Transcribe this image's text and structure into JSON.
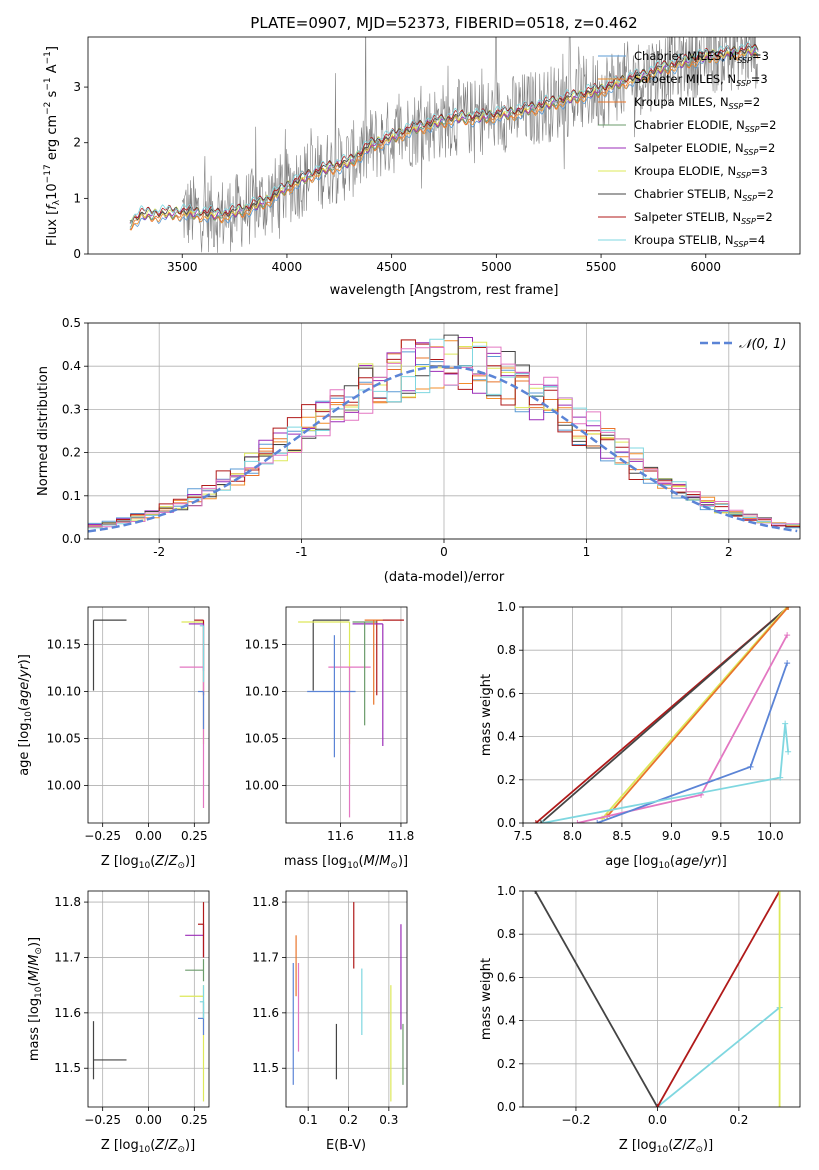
{
  "colors": {
    "chabrier_miles": "#5b9bd5",
    "salpeter_miles": "#f28e2b",
    "kroupa_miles": "#e8742a",
    "chabrier_elodie": "#6b9b6b",
    "salpeter_elodie": "#9b2db8",
    "kroupa_elodie": "#dde85a",
    "chabrier_stelib": "#444444",
    "salpeter_stelib": "#b01a1a",
    "kroupa_stelib": "#7fd7e0",
    "pink": "#e377c2",
    "blue": "#5b84d6",
    "spectrum": "#7f7f7f",
    "normal_curve": "#5b84d6"
  },
  "chart_data": [
    {
      "id": "spectrum",
      "type": "line",
      "title": "PLATE=0907, MJD=52373, FIBERID=0518, z=0.462",
      "xlabel": "wavelength [Angstrom, rest frame]",
      "ylabel": "Flux [f_λ10^-17 erg cm^-2 s^-1 A^-1]",
      "xlim": [
        3050,
        6450
      ],
      "ylim": [
        0,
        3.9
      ],
      "xticks": [
        3500,
        4000,
        4500,
        5000,
        5500,
        6000
      ],
      "yticks": [
        0,
        1,
        2,
        3
      ],
      "grid": false,
      "legend_position": "top-right",
      "legend": [
        {
          "name": "Chabrier MILES, N_SSP=3",
          "color_key": "chabrier_miles"
        },
        {
          "name": "Salpeter MILES, N_SSP=3",
          "color_key": "salpeter_miles"
        },
        {
          "name": "Kroupa MILES, N_SSP=2",
          "color_key": "kroupa_miles"
        },
        {
          "name": "Chabrier ELODIE, N_SSP=2",
          "color_key": "chabrier_elodie"
        },
        {
          "name": "Salpeter ELODIE, N_SSP=2",
          "color_key": "salpeter_elodie"
        },
        {
          "name": "Kroupa ELODIE, N_SSP=3",
          "color_key": "kroupa_elodie"
        },
        {
          "name": "Chabrier STELIB, N_SSP=2",
          "color_key": "chabrier_stelib"
        },
        {
          "name": "Salpeter STELIB, N_SSP=2",
          "color_key": "salpeter_stelib"
        },
        {
          "name": "Kroupa STELIB, N_SSP=4",
          "color_key": "kroupa_stelib"
        }
      ],
      "continuum": {
        "x": [
          3250,
          3300,
          3400,
          3500,
          3600,
          3700,
          3800,
          3900,
          4000,
          4100,
          4200,
          4300,
          4400,
          4500,
          4600,
          4700,
          4800,
          4900,
          5000,
          5100,
          5200,
          5300,
          5400,
          5500,
          5600,
          5700,
          5800,
          5900,
          6000,
          6100,
          6200
        ],
        "y": [
          0.55,
          0.7,
          0.72,
          0.75,
          0.72,
          0.7,
          0.8,
          0.95,
          1.2,
          1.4,
          1.55,
          1.65,
          1.95,
          2.1,
          2.25,
          2.35,
          2.45,
          2.45,
          2.5,
          2.55,
          2.65,
          2.75,
          2.85,
          2.95,
          3.1,
          3.2,
          3.35,
          3.45,
          3.55,
          3.6,
          3.65
        ]
      },
      "noisy_data_range": [
        3500,
        6250
      ]
    },
    {
      "id": "residuals",
      "type": "bar",
      "xlabel": "(data-model)/error",
      "ylabel": "Normed distribution",
      "xlim": [
        -2.5,
        2.5
      ],
      "ylim": [
        0,
        0.5
      ],
      "xticks": [
        -2,
        -1,
        0,
        1,
        2
      ],
      "yticks": [
        0.0,
        0.1,
        0.2,
        0.3,
        0.4,
        0.5
      ],
      "grid": true,
      "legend_position": "top-right",
      "legend": [
        {
          "name": "N(0,1)",
          "color_key": "normal_curve",
          "style": "dashed"
        }
      ],
      "bin_width": 0.1,
      "series_center": 0.0,
      "series_sigma": 1.0,
      "series": [
        {
          "color_key": "chabrier_miles",
          "offset": -0.05
        },
        {
          "color_key": "salpeter_miles",
          "offset": 0.02
        },
        {
          "color_key": "kroupa_miles",
          "offset": 0.04
        },
        {
          "color_key": "salpeter_elodie",
          "offset": -0.02
        },
        {
          "color_key": "kroupa_elodie",
          "offset": 0.0
        },
        {
          "color_key": "chabrier_stelib",
          "offset": 0.03
        },
        {
          "color_key": "salpeter_stelib",
          "offset": -0.03
        },
        {
          "color_key": "kroupa_stelib",
          "offset": 0.05
        },
        {
          "color_key": "pink",
          "offset": 0.06
        }
      ]
    },
    {
      "id": "age_vs_Z",
      "type": "scatter",
      "xlabel": "Z [log10(Z/Z⊙)]",
      "ylabel": "age [log10(age/yr)]",
      "xlim": [
        -0.33,
        0.33
      ],
      "ylim": [
        9.96,
        10.19
      ],
      "xticks": [
        -0.25,
        0.0,
        0.25
      ],
      "xtick_labels": [
        "−0.25",
        "0.00",
        "0.25"
      ],
      "yticks": [
        10.0,
        10.05,
        10.1,
        10.15
      ],
      "ytick_labels": [
        "10.00",
        "10.05",
        "10.10",
        "10.15"
      ],
      "grid": true,
      "points": [
        {
          "x": -0.3,
          "y": 10.176,
          "xerr": [
            0,
            0.18
          ],
          "yerr": [
            0.075,
            0
          ],
          "color_key": "chabrier_stelib"
        },
        {
          "x": 0.3,
          "y": 10.174,
          "xerr": [
            0.12,
            0
          ],
          "yerr": [
            0.13,
            0
          ],
          "color_key": "kroupa_elodie"
        },
        {
          "x": 0.3,
          "y": 10.176,
          "xerr": [
            0.05,
            0
          ],
          "yerr": [
            0.08,
            0
          ],
          "color_key": "salpeter_stelib"
        },
        {
          "x": 0.3,
          "y": 10.172,
          "xerr": [
            0.08,
            0
          ],
          "yerr": [
            0.05,
            0
          ],
          "color_key": "salpeter_elodie"
        },
        {
          "x": 0.3,
          "y": 10.126,
          "xerr": [
            0.13,
            0
          ],
          "yerr": [
            0.15,
            0
          ],
          "color_key": "pink"
        },
        {
          "x": 0.3,
          "y": 10.1,
          "xerr": [
            0.03,
            0
          ],
          "yerr": [
            0.04,
            0
          ],
          "color_key": "blue"
        },
        {
          "x": 0.3,
          "y": 10.17,
          "xerr": [
            0.02,
            0
          ],
          "yerr": [
            0.06,
            0
          ],
          "color_key": "kroupa_stelib"
        }
      ]
    },
    {
      "id": "age_vs_mass",
      "type": "scatter",
      "xlabel": "mass [log10(M/M⊙)]",
      "xlim": [
        11.42,
        11.82
      ],
      "ylim": [
        9.96,
        10.19
      ],
      "xticks": [
        11.6,
        11.8
      ],
      "yticks": [
        10.0,
        10.05,
        10.1,
        10.15
      ],
      "ytick_labels": [
        "10.00",
        "10.05",
        "10.10",
        "10.15"
      ],
      "grid": true,
      "points": [
        {
          "x": 11.51,
          "y": 10.176,
          "xerr": [
            0.0,
            0.12
          ],
          "yerr": [
            0.075,
            0
          ],
          "color_key": "chabrier_stelib"
        },
        {
          "x": 11.63,
          "y": 10.174,
          "xerr": [
            0.17,
            0.0
          ],
          "yerr": [
            0.13,
            0
          ],
          "color_key": "kroupa_elodie"
        },
        {
          "x": 11.72,
          "y": 10.176,
          "xerr": [
            0.0,
            0.09
          ],
          "yerr": [
            0.08,
            0
          ],
          "color_key": "salpeter_stelib"
        },
        {
          "x": 11.74,
          "y": 10.172,
          "xerr": [
            0.1,
            0.0
          ],
          "yerr": [
            0.13,
            0
          ],
          "color_key": "salpeter_elodie"
        },
        {
          "x": 11.63,
          "y": 10.126,
          "xerr": [
            0.07,
            0.07
          ],
          "yerr": [
            0.16,
            0
          ],
          "color_key": "pink"
        },
        {
          "x": 11.58,
          "y": 10.1,
          "xerr": [
            0.09,
            0.07
          ],
          "yerr": [
            0.07,
            0.06
          ],
          "color_key": "blue"
        },
        {
          "x": 11.68,
          "y": 10.174,
          "xerr": [
            0.04,
            0.04
          ],
          "yerr": [
            0.11,
            0
          ],
          "color_key": "chabrier_elodie"
        },
        {
          "x": 11.71,
          "y": 10.176,
          "xerr": [
            0.03,
            0.03
          ],
          "yerr": [
            0.09,
            0
          ],
          "color_key": "kroupa_miles"
        }
      ]
    },
    {
      "id": "weight_vs_age",
      "type": "line",
      "xlabel": "age [log10(age/yr)]",
      "ylabel": "mass weight",
      "xlim": [
        7.5,
        10.3
      ],
      "ylim": [
        0.0,
        1.0
      ],
      "xticks": [
        7.5,
        8.0,
        8.5,
        9.0,
        9.5,
        10.0
      ],
      "yticks": [
        0.0,
        0.2,
        0.4,
        0.6,
        0.8,
        1.0
      ],
      "grid": true,
      "series": [
        {
          "color_key": "salpeter_stelib",
          "x": [
            7.63,
            10.18
          ],
          "y": [
            0.0,
            1.0
          ]
        },
        {
          "color_key": "chabrier_stelib",
          "x": [
            7.68,
            10.18
          ],
          "y": [
            0.0,
            1.0
          ]
        },
        {
          "color_key": "kroupa_elodie",
          "x": [
            8.3,
            10.17
          ],
          "y": [
            0.02,
            1.0
          ]
        },
        {
          "color_key": "kroupa_miles",
          "x": [
            8.35,
            10.18
          ],
          "y": [
            0.03,
            1.0
          ]
        },
        {
          "color_key": "pink",
          "x": [
            8.05,
            9.3,
            10.17
          ],
          "y": [
            0.0,
            0.13,
            0.87
          ]
        },
        {
          "color_key": "blue",
          "x": [
            8.25,
            9.8,
            10.17
          ],
          "y": [
            0.0,
            0.26,
            0.74
          ]
        },
        {
          "color_key": "kroupa_stelib",
          "x": [
            7.7,
            10.1,
            10.15,
            10.18
          ],
          "y": [
            0.0,
            0.21,
            0.46,
            0.33
          ]
        }
      ]
    },
    {
      "id": "mass_vs_Z",
      "type": "scatter",
      "xlabel": "Z [log10(Z/Z⊙)]",
      "ylabel": "mass [log10(M/M⊙)]",
      "xlim": [
        -0.33,
        0.33
      ],
      "ylim": [
        11.43,
        11.82
      ],
      "xticks": [
        -0.25,
        0.0,
        0.25
      ],
      "xtick_labels": [
        "−0.25",
        "0.00",
        "0.25"
      ],
      "yticks": [
        11.5,
        11.6,
        11.7,
        11.8
      ],
      "grid": true,
      "points": [
        {
          "x": -0.3,
          "y": 11.515,
          "xerr": [
            0,
            0.18
          ],
          "yerr": [
            0.035,
            0.07
          ],
          "color_key": "chabrier_stelib"
        },
        {
          "x": 0.3,
          "y": 11.63,
          "xerr": [
            0.13,
            0
          ],
          "yerr": [
            0.19,
            0.02
          ],
          "color_key": "kroupa_elodie"
        },
        {
          "x": 0.3,
          "y": 11.74,
          "xerr": [
            0.1,
            0
          ],
          "yerr": [
            0.04,
            0.02
          ],
          "color_key": "salpeter_elodie"
        },
        {
          "x": 0.3,
          "y": 11.677,
          "xerr": [
            0.1,
            0
          ],
          "yerr": [
            0.02,
            0.02
          ],
          "color_key": "chabrier_elodie"
        },
        {
          "x": 0.3,
          "y": 11.76,
          "xerr": [
            0.03,
            0
          ],
          "yerr": [
            0.06,
            0.04
          ],
          "color_key": "salpeter_stelib"
        },
        {
          "x": 0.3,
          "y": 11.59,
          "xerr": [
            0.03,
            0
          ],
          "yerr": [
            0.03,
            0.03
          ],
          "color_key": "blue"
        },
        {
          "x": 0.3,
          "y": 11.62,
          "xerr": [
            0.02,
            0
          ],
          "yerr": [
            0.03,
            0.03
          ],
          "color_key": "kroupa_stelib"
        }
      ]
    },
    {
      "id": "mass_vs_ebv",
      "type": "scatter",
      "xlabel": "E(B-V)",
      "xlim": [
        0.045,
        0.345
      ],
      "ylim": [
        11.43,
        11.82
      ],
      "xticks": [
        0.1,
        0.2,
        0.3
      ],
      "yticks": [
        11.5,
        11.6,
        11.7,
        11.8
      ],
      "grid": true,
      "points": [
        {
          "x": 0.063,
          "y": 11.58,
          "yerr": [
            0.11,
            0.11
          ],
          "color_key": "blue"
        },
        {
          "x": 0.07,
          "y": 11.68,
          "yerr": [
            0.05,
            0.06
          ],
          "color_key": "kroupa_miles"
        },
        {
          "x": 0.076,
          "y": 11.63,
          "yerr": [
            0.1,
            0.06
          ],
          "color_key": "pink"
        },
        {
          "x": 0.17,
          "y": 11.53,
          "yerr": [
            0.05,
            0.05
          ],
          "color_key": "chabrier_stelib"
        },
        {
          "x": 0.213,
          "y": 11.74,
          "yerr": [
            0.06,
            0.06
          ],
          "color_key": "salpeter_stelib"
        },
        {
          "x": 0.233,
          "y": 11.62,
          "yerr": [
            0.06,
            0.06
          ],
          "color_key": "kroupa_stelib"
        },
        {
          "x": 0.305,
          "y": 11.55,
          "yerr": [
            0.11,
            0.1
          ],
          "color_key": "kroupa_elodie"
        },
        {
          "x": 0.33,
          "y": 11.66,
          "yerr": [
            0.09,
            0.1
          ],
          "color_key": "salpeter_elodie"
        },
        {
          "x": 0.335,
          "y": 11.53,
          "yerr": [
            0.06,
            0.05
          ],
          "color_key": "chabrier_elodie"
        }
      ]
    },
    {
      "id": "weight_vs_Z",
      "type": "line",
      "xlabel": "Z [log10(Z/Z⊙)]",
      "ylabel": "mass weight",
      "xlim": [
        -0.33,
        0.35
      ],
      "ylim": [
        0.0,
        1.0
      ],
      "xticks": [
        -0.2,
        0.0,
        0.2
      ],
      "xtick_labels": [
        "−0.2",
        "0.0",
        "0.2"
      ],
      "yticks": [
        0.0,
        0.2,
        0.4,
        0.6,
        0.8,
        1.0
      ],
      "grid": true,
      "series": [
        {
          "color_key": "chabrier_stelib",
          "x": [
            -0.3,
            0.0
          ],
          "y": [
            1.0,
            0.0
          ]
        },
        {
          "color_key": "kroupa_stelib",
          "x": [
            0.0,
            0.3
          ],
          "y": [
            0.0,
            0.46
          ]
        },
        {
          "color_key": "salpeter_stelib",
          "x": [
            0.0,
            0.3
          ],
          "y": [
            0.0,
            1.0
          ]
        },
        {
          "color_key": "kroupa_elodie",
          "x": [
            0.3,
            0.3
          ],
          "y": [
            0.0,
            1.0
          ]
        }
      ]
    }
  ]
}
